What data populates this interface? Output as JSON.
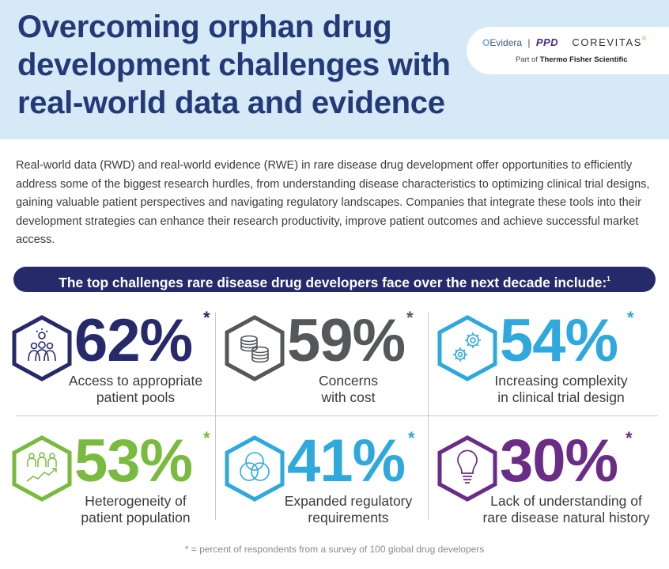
{
  "header": {
    "title_lines": [
      "Overcoming orphan drug",
      "development challenges with",
      "real-world data and evidence"
    ],
    "logos": {
      "evidera": "Evidera",
      "ppd": "PPD",
      "corevitas": "COREVITAS",
      "trademark": "®",
      "part_of_prefix": "Part of",
      "part_of_company": "Thermo Fisher Scientific"
    }
  },
  "intro_text": "Real-world data (RWD) and real-world evidence (RWE) in rare disease drug development offer opportunities to efficiently address some of the biggest research hurdles, from understanding disease characteristics to optimizing clinical trial designs, gaining valuable patient perspectives and navigating regulatory landscapes. Companies that integrate these tools into their development strategies can enhance their research productivity, improve patient outcomes and achieve successful market access.",
  "banner": {
    "text": "The top challenges rare disease drug developers face over the next decade include:",
    "superscript": "1"
  },
  "stats": [
    {
      "value": "62%",
      "asterisk": "*",
      "label_lines": [
        "Access to appropriate",
        "patient pools"
      ],
      "icon": "people-group-icon",
      "color": "#262a6a"
    },
    {
      "value": "59%",
      "asterisk": "*",
      "label_lines": [
        "Concerns",
        "with cost"
      ],
      "icon": "coins-icon",
      "color": "#55575a"
    },
    {
      "value": "54%",
      "asterisk": "*",
      "label_lines": [
        "Increasing complexity",
        "in clinical trial design"
      ],
      "icon": "gears-icon",
      "color": "#2fa8dd"
    },
    {
      "value": "53%",
      "asterisk": "*",
      "label_lines": [
        "Heterogeneity of",
        "patient population"
      ],
      "icon": "diverse-people-chart-icon",
      "color": "#79bb3e"
    },
    {
      "value": "41%",
      "asterisk": "*",
      "label_lines": [
        "Expanded regulatory",
        "requirements"
      ],
      "icon": "venn-circles-icon",
      "color": "#2fa8dd"
    },
    {
      "value": "30%",
      "asterisk": "*",
      "label_lines": [
        "Lack of understanding of",
        "rare disease natural history"
      ],
      "icon": "lightbulb-icon",
      "color": "#6a2c86"
    }
  ],
  "footnote": "* = percent of respondents from a survey of 100 global drug developers"
}
